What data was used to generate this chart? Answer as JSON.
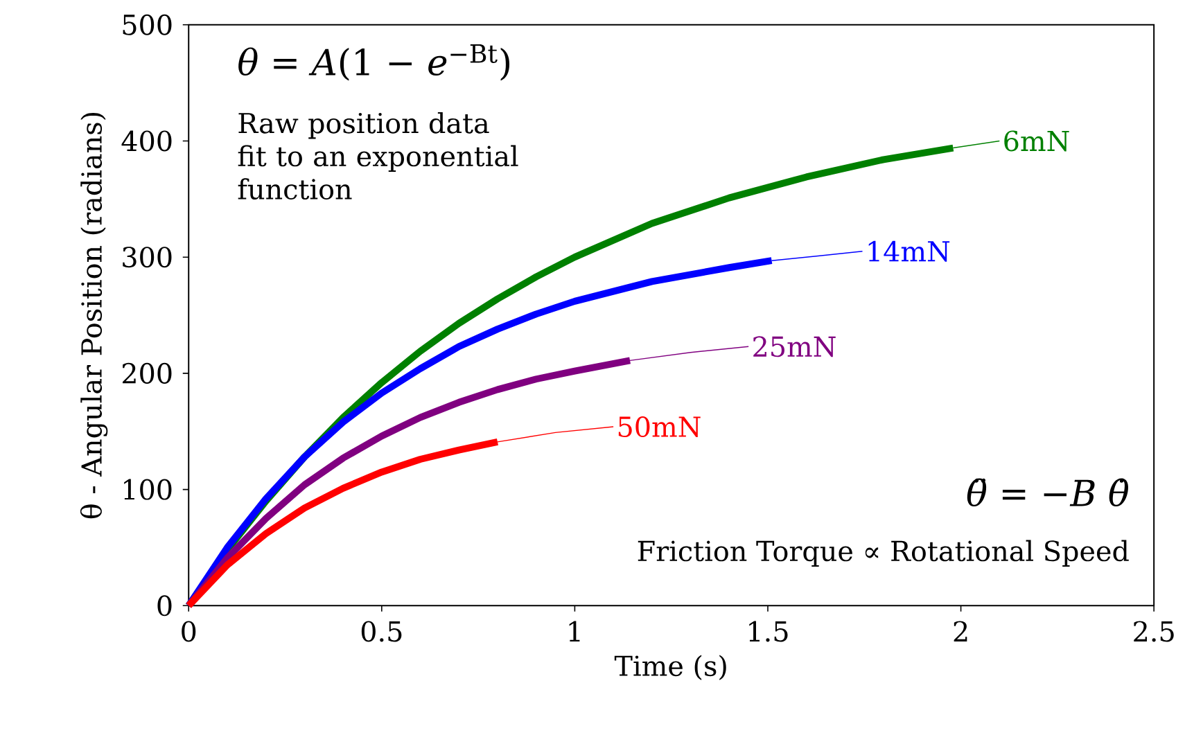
{
  "chart_data": {
    "type": "line",
    "xlabel": "Time (s)",
    "ylabel": "θ - Angular Position (radians)",
    "xlim": [
      0,
      2.5
    ],
    "ylim": [
      0,
      500
    ],
    "xticks": [
      0,
      0.5,
      1,
      1.5,
      2,
      2.5
    ],
    "yticks": [
      0,
      100,
      200,
      300,
      400,
      500
    ],
    "grid": false,
    "marker": "none",
    "line_style": "solid",
    "annotations": [
      "*θ* = *A*(1 − *e*$^{−Bt}$)",
      "Raw position data fit to an exponential function",
      "*θ̈* = −*B* *θ̇*",
      "Friction Torque ∝ Rotational Speed"
    ],
    "series": [
      {
        "color": "#008000",
        "x": [
          0,
          0.1,
          0.2,
          0.3,
          0.4,
          0.5,
          0.6,
          0.7,
          0.8,
          0.9,
          1.0,
          1.2,
          1.4,
          1.6,
          1.8,
          1.98
        ],
        "values": [
          0,
          48,
          90,
          128,
          162,
          192,
          219,
          243,
          264,
          283,
          300,
          329,
          351,
          369,
          384,
          394
        ]
      },
      {
        "color": "#0000ff",
        "x": [
          0,
          0.1,
          0.2,
          0.3,
          0.4,
          0.5,
          0.6,
          0.7,
          0.8,
          0.9,
          1.0,
          1.2,
          1.4,
          1.51
        ],
        "values": [
          0,
          50,
          92,
          128,
          158,
          183,
          204,
          223,
          238,
          251,
          262,
          279,
          291,
          297
        ]
      },
      {
        "color": "#800080",
        "x": [
          0,
          0.1,
          0.2,
          0.3,
          0.4,
          0.5,
          0.6,
          0.7,
          0.8,
          0.9,
          1.0,
          1.143
        ],
        "values": [
          0,
          41,
          75,
          104,
          127,
          146,
          162,
          175,
          186,
          195,
          202,
          211
        ]
      },
      {
        "color": "#ff0000",
        "x": [
          0,
          0.1,
          0.2,
          0.3,
          0.4,
          0.5,
          0.6,
          0.7,
          0.8
        ],
        "values": [
          0,
          35,
          62,
          84,
          101,
          115,
          126,
          134,
          141
        ]
      },
      {
        "name": "6mN",
        "color": "#008000",
        "x": [
          1.98,
          2.04,
          2.1
        ],
        "values": [
          394,
          397,
          400
        ]
      },
      {
        "name": "14mN",
        "color": "#0000ff",
        "x": [
          1.51,
          1.63,
          1.745
        ],
        "values": [
          297,
          301,
          305
        ]
      },
      {
        "name": "25mN",
        "color": "#800080",
        "x": [
          1.143,
          1.3,
          1.45
        ],
        "values": [
          211,
          218,
          223
        ]
      },
      {
        "name": "50mN",
        "color": "#ff0000",
        "x": [
          0.8,
          0.95,
          1.1
        ],
        "values": [
          141,
          149,
          154
        ]
      }
    ]
  }
}
